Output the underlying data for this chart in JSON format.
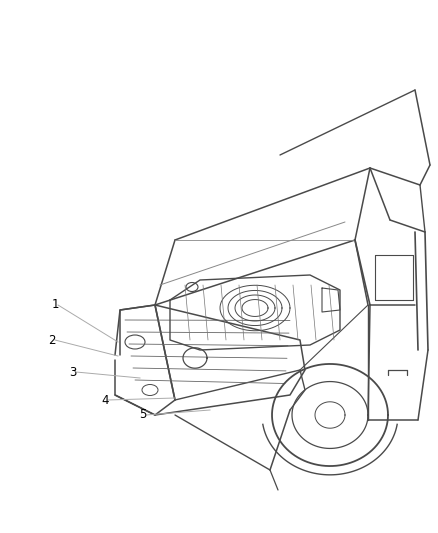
{
  "background_color": "#ffffff",
  "line_color": "#4a4a4a",
  "callout_color": "#aaaaaa",
  "label_color": "#000000",
  "label_fontsize": 8.5,
  "labels": [
    "1",
    "2",
    "3",
    "4",
    "5"
  ],
  "figsize": [
    4.38,
    5.33
  ],
  "dpi": 100
}
